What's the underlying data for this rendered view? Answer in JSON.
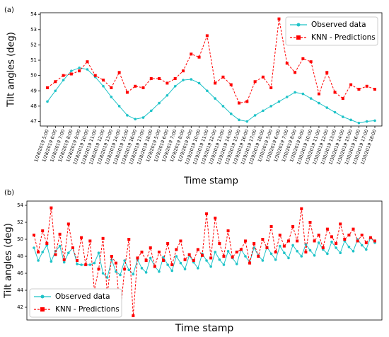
{
  "chart_data": [
    {
      "type": "line",
      "label": "(a)",
      "ylabel": "Tilt angles (deg)",
      "xlabel": "Time stamp",
      "categories": [
        "1/28/2019 5:00",
        "1/28/2019 6:00",
        "1/28/2019 7:00",
        "1/28/2019 8:00",
        "1/28/2019 9:00",
        "1/28/2019 10:00",
        "1/28/2019 11:00",
        "1/28/2019 12:00",
        "1/28/2019 13:00",
        "1/28/2019 14:00",
        "1/28/2019 15:00",
        "1/28/2019 16:00",
        "1/28/2019 17:00",
        "1/28/2019 18:00",
        "1/29/2019 5:00",
        "1/29/2019 6:00",
        "1/29/2019 7:00",
        "1/29/2019 8:00",
        "1/29/2019 9:00",
        "1/29/2019 10:00",
        "1/29/2019 11:00",
        "1/29/2019 12:00",
        "1/29/2019 13:00",
        "1/29/2019 14:00",
        "1/29/2019 15:00",
        "1/29/2019 16:00",
        "1/29/2019 17:00",
        "1/29/2019 18:00",
        "1/30/2019 5:00",
        "1/30/2019 6:00",
        "1/30/2019 7:00",
        "1/30/2019 8:00",
        "1/30/2019 9:00",
        "1/30/2019 10:00",
        "1/30/2019 11:00",
        "1/30/2019 12:00",
        "1/30/2019 13:00",
        "1/30/2019 14:00",
        "1/30/2019 15:00",
        "1/30/2019 16:00",
        "1/30/2019 17:00",
        "1/30/2019 18:00"
      ],
      "series": [
        {
          "name": "Observed data",
          "color": "#1fc3c8",
          "marker": "dot",
          "dashed": false,
          "values": [
            48.3,
            49.0,
            49.7,
            50.3,
            50.5,
            50.4,
            49.9,
            49.3,
            48.6,
            48.0,
            47.4,
            47.15,
            47.25,
            47.7,
            48.2,
            48.7,
            49.3,
            49.7,
            49.75,
            49.5,
            49.0,
            48.5,
            48.0,
            47.5,
            47.1,
            47.0,
            47.4,
            47.7,
            48.0,
            48.3,
            48.6,
            48.9,
            48.8,
            48.5,
            48.2,
            47.9,
            47.6,
            47.3,
            47.1,
            46.9,
            47.0,
            47.05
          ]
        },
        {
          "name": "KNN - Predictions",
          "color": "#ff0000",
          "marker": "square",
          "dashed": true,
          "values": [
            49.2,
            49.6,
            50.0,
            50.1,
            50.3,
            50.9,
            50.0,
            49.7,
            49.2,
            50.2,
            48.9,
            49.3,
            49.2,
            49.8,
            49.8,
            49.5,
            49.8,
            50.3,
            51.4,
            51.2,
            52.6,
            49.5,
            49.9,
            49.4,
            48.2,
            48.3,
            49.6,
            49.9,
            49.2,
            53.7,
            50.8,
            50.2,
            51.1,
            50.9,
            48.8,
            50.2,
            48.9,
            48.5,
            49.4,
            49.1,
            49.3,
            49.1
          ]
        }
      ],
      "ylim": [
        46.7,
        54.1
      ],
      "yticks": [
        47,
        48,
        49,
        50,
        51,
        52,
        53,
        54
      ],
      "legend": "upper right"
    },
    {
      "type": "line",
      "label": "(b)",
      "ylabel": "Tilt angles (deg)",
      "xlabel": "Time stamp",
      "series": [
        {
          "name": "Observed data",
          "color": "#1fc3c8",
          "marker": "dot",
          "dashed": false,
          "values": [
            49,
            47.5,
            48.5,
            49.3,
            47.4,
            48.6,
            49.2,
            47.3,
            48.4,
            49.0,
            47.1,
            47.0,
            47.0,
            47.0,
            47.2,
            48.4,
            46.0,
            45.5,
            47.6,
            46.2,
            45.8,
            47.5,
            46.4,
            45.9,
            47.6,
            46.6,
            46.1,
            47.8,
            46.8,
            46.2,
            47.9,
            47.0,
            46.3,
            48.0,
            47.2,
            46.5,
            48.1,
            47.3,
            46.6,
            48.3,
            47.5,
            46.8,
            48.5,
            47.6,
            47.0,
            48.6,
            47.8,
            47.1,
            48.8,
            48.0,
            47.3,
            49.0,
            48.1,
            47.5,
            49.1,
            48.3,
            47.6,
            49.2,
            48.4,
            47.8,
            49.3,
            48.6,
            48.0,
            49.4,
            48.7,
            48.1,
            49.6,
            48.8,
            48.3,
            49.7,
            49.0,
            48.4,
            49.8,
            49.1,
            48.6,
            50.0,
            49.3,
            48.8,
            50.2,
            49.6
          ]
        },
        {
          "name": "KNN - Predictions",
          "color": "#ff0000",
          "marker": "square",
          "dashed": true,
          "values": [
            50.5,
            48.5,
            51.0,
            49.5,
            53.7,
            48.2,
            50.6,
            47.6,
            51.8,
            49.0,
            47.5,
            50.2,
            47.0,
            49.8,
            44.0,
            46.5,
            50.1,
            43.5,
            48.0,
            47.2,
            41.2,
            46.5,
            50.0,
            41.0,
            47.8,
            48.5,
            47.5,
            49.0,
            46.8,
            48.5,
            47.5,
            49.5,
            47.0,
            48.8,
            49.8,
            47.6,
            48.2,
            47.5,
            48.8,
            48.1,
            53.0,
            47.8,
            52.5,
            49.5,
            48.0,
            51.0,
            47.9,
            48.5,
            48.8,
            49.8,
            47.2,
            49.5,
            48.0,
            50.0,
            49.0,
            51.5,
            48.5,
            50.5,
            49.2,
            49.8,
            51.5,
            49.8,
            53.6,
            48.5,
            52.0,
            49.8,
            50.5,
            49.0,
            51.2,
            50.3,
            49.5,
            51.8,
            50.0,
            50.5,
            51.2,
            49.8,
            50.5,
            49.6,
            50.2,
            49.8
          ]
        }
      ],
      "ylim": [
        40.5,
        54.5
      ],
      "yticks": [
        42,
        44,
        46,
        48,
        50,
        52,
        54
      ],
      "legend": "lower left"
    }
  ]
}
